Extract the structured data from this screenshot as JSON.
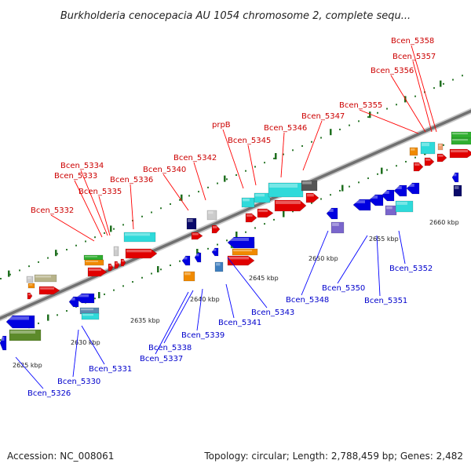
{
  "title": "Burkholderia cenocepacia AU 1054 chromosome 2, complete sequ...",
  "footer": {
    "accession": "Accession: NC_008061",
    "summary": "Topology: circular; Length: 2,788,459 bp; Genes: 2,482"
  },
  "colors": {
    "forward_label": "#cc0000",
    "reverse_label": "#0000cc",
    "backbone": "#888888"
  },
  "ticks": [
    "2625 kbp",
    "2630 kbp",
    "2635 kbp",
    "2640 kbp",
    "2645 kbp",
    "2650 kbp",
    "2655 kbp",
    "2660 kbp"
  ],
  "forward_labels": [
    "Bcen_5332",
    "Bcen_5333",
    "Bcen_5334",
    "Bcen_5335",
    "Bcen_5336",
    "Bcen_5340",
    "Bcen_5342",
    "prpB",
    "Bcen_5345",
    "Bcen_5346",
    "Bcen_5347",
    "Bcen_5355",
    "Bcen_5356",
    "Bcen_5357",
    "Bcen_5358"
  ],
  "reverse_labels": [
    "Bcen_5326",
    "Bcen_5330",
    "Bcen_5331",
    "Bcen_5337",
    "Bcen_5338",
    "Bcen_5339",
    "Bcen_5341",
    "Bcen_5343",
    "Bcen_5348",
    "Bcen_5350",
    "Bcen_5351",
    "Bcen_5352"
  ]
}
